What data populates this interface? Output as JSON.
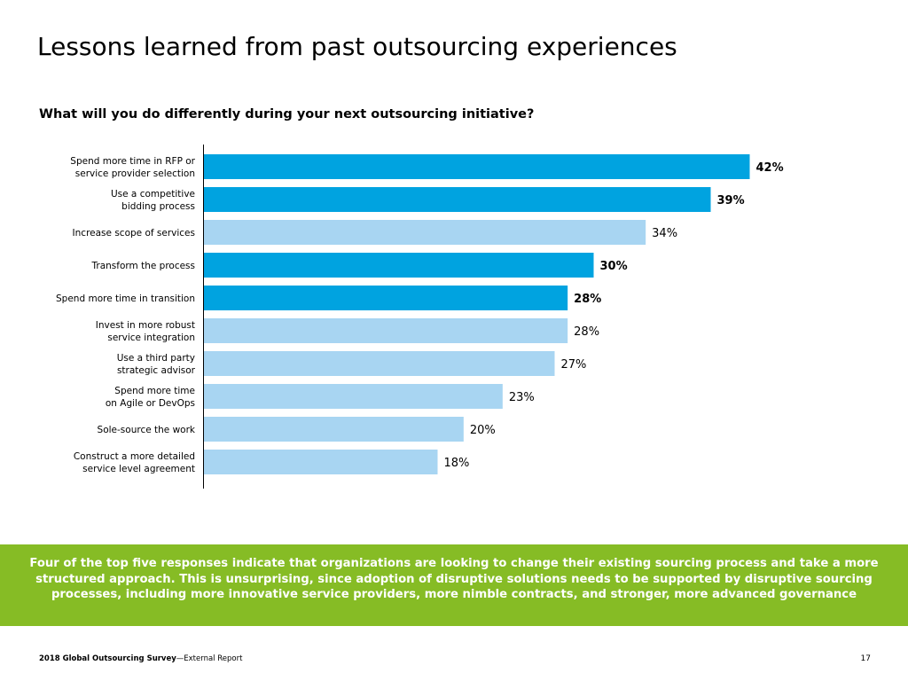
{
  "slide": {
    "title": "Lessons learned from past outsourcing experiences",
    "callout": "Four of the top five responses indicate that organizations are looking to change their existing sourcing process and take a more structured approach. This is unsurprising, since adoption of disruptive solutions needs to be supported by disruptive sourcing processes, including more innovative service providers, more nimble contracts, and stronger, more advanced governance",
    "footer": {
      "source_bold": "2018 Global Outsourcing Survey",
      "source_rest": "—External Report",
      "page_number": "17"
    }
  },
  "colors": {
    "highlight_bar": "#00a3e0",
    "standard_bar": "#a8d5f2",
    "callout_background": "#86bc25",
    "callout_text": "#ffffff",
    "axis": "#000000"
  },
  "chart_data": {
    "type": "bar",
    "orientation": "horizontal",
    "title": "What will you do differently during your next outsourcing initiative?",
    "xlim": [
      0,
      42
    ],
    "grid": false,
    "legend": "none",
    "value_suffix": "%",
    "categories": [
      [
        "Spend more time in RFP or",
        "service provider selection"
      ],
      [
        "Use a competitive",
        "bidding process"
      ],
      [
        "Increase scope of services"
      ],
      [
        "Transform the process"
      ],
      [
        "Spend more time in transition"
      ],
      [
        "Invest in more robust",
        "service integration"
      ],
      [
        "Use a third party",
        "strategic advisor"
      ],
      [
        "Spend more time",
        "on Agile or DevOps"
      ],
      [
        "Sole-source the work"
      ],
      [
        "Construct a more detailed",
        "service level agreement"
      ]
    ],
    "values": [
      42,
      39,
      34,
      30,
      28,
      28,
      27,
      23,
      20,
      18
    ],
    "highlighted": [
      true,
      true,
      false,
      true,
      true,
      false,
      false,
      false,
      false,
      false
    ]
  }
}
